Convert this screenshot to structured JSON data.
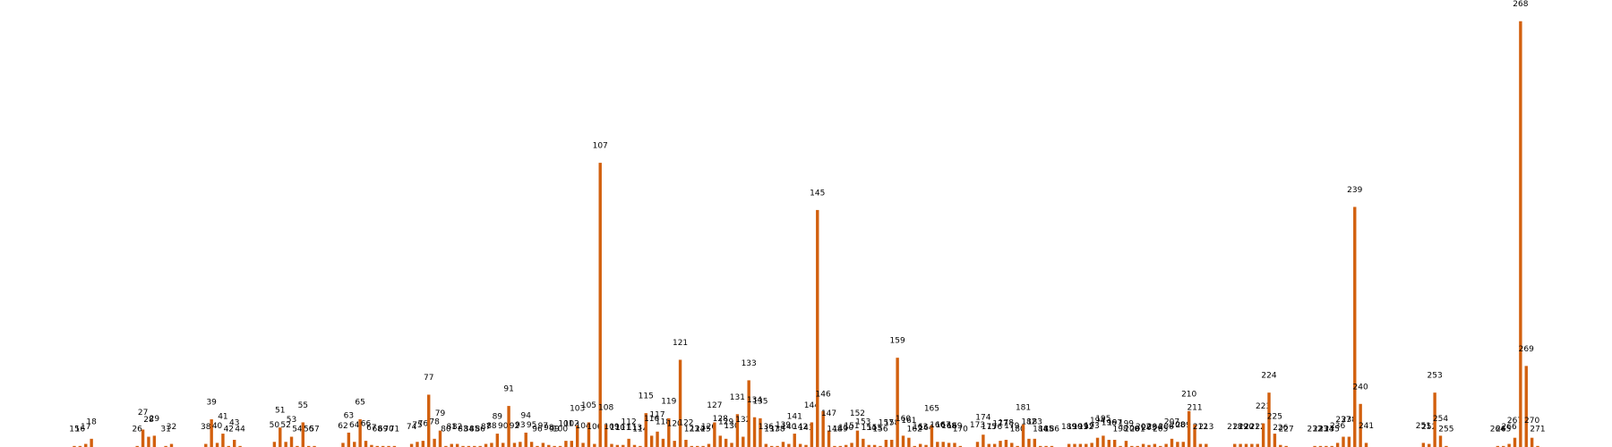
{
  "chart_data": {
    "type": "bar",
    "color": "#d2600e",
    "x": [
      15,
      16,
      17,
      18,
      26,
      27,
      28,
      29,
      31,
      32,
      38,
      39,
      40,
      41,
      42,
      43,
      44,
      50,
      51,
      52,
      53,
      54,
      55,
      56,
      57,
      62,
      63,
      64,
      65,
      66,
      67,
      68,
      69,
      70,
      71,
      74,
      75,
      76,
      77,
      78,
      79,
      80,
      81,
      82,
      83,
      84,
      85,
      86,
      87,
      88,
      89,
      90,
      91,
      92,
      93,
      94,
      95,
      96,
      97,
      98,
      99,
      100,
      101,
      102,
      103,
      104,
      105,
      106,
      107,
      108,
      109,
      110,
      111,
      112,
      113,
      114,
      115,
      116,
      117,
      118,
      119,
      120,
      121,
      122,
      123,
      124,
      125,
      126,
      127,
      128,
      129,
      130,
      131,
      132,
      133,
      134,
      135,
      136,
      137,
      138,
      139,
      140,
      141,
      142,
      143,
      144,
      145,
      146,
      147,
      148,
      149,
      150,
      151,
      152,
      153,
      154,
      155,
      156,
      157,
      158,
      159,
      160,
      161,
      162,
      163,
      164,
      165,
      166,
      167,
      168,
      169,
      170,
      173,
      174,
      175,
      176,
      177,
      178,
      179,
      180,
      181,
      182,
      183,
      184,
      185,
      186,
      189,
      190,
      191,
      192,
      193,
      194,
      195,
      196,
      197,
      198,
      199,
      200,
      201,
      202,
      203,
      204,
      205,
      206,
      207,
      208,
      209,
      210,
      211,
      212,
      213,
      218,
      219,
      220,
      221,
      222,
      223,
      224,
      225,
      226,
      227,
      232,
      233,
      234,
      235,
      236,
      237,
      238,
      239,
      240,
      241,
      251,
      252,
      253,
      254,
      255,
      264,
      265,
      266,
      267,
      268,
      269,
      270,
      271
    ],
    "values": [
      1,
      1,
      3,
      8,
      1,
      17,
      10,
      11,
      1,
      3,
      3,
      27,
      4,
      13,
      1,
      7,
      1,
      5,
      19,
      5,
      10,
      1,
      24,
      1,
      1,
      4,
      14,
      5,
      27,
      6,
      2,
      1,
      1,
      1,
      1,
      3,
      5,
      6,
      51,
      8,
      16,
      1,
      3,
      3,
      1,
      1,
      1,
      1,
      3,
      4,
      13,
      4,
      40,
      4,
      5,
      14,
      5,
      1,
      4,
      2,
      1,
      1,
      6,
      6,
      21,
      4,
      24,
      3,
      277,
      22,
      3,
      2,
      2,
      8,
      2,
      1,
      33,
      11,
      15,
      8,
      28,
      6,
      85,
      7,
      1,
      1,
      1,
      3,
      24,
      11,
      8,
      4,
      32,
      10,
      65,
      29,
      28,
      3,
      1,
      1,
      5,
      3,
      13,
      3,
      2,
      24,
      231,
      35,
      16,
      1,
      1,
      2,
      4,
      16,
      8,
      2,
      2,
      1,
      7,
      7,
      87,
      11,
      9,
      1,
      3,
      2,
      21,
      5,
      5,
      4,
      4,
      1,
      5,
      12,
      3,
      3,
      6,
      7,
      4,
      1,
      22,
      8,
      8,
      1,
      1,
      1,
      3,
      3,
      3,
      3,
      4,
      9,
      11,
      7,
      7,
      1,
      6,
      1,
      1,
      3,
      2,
      3,
      1,
      3,
      8,
      5,
      5,
      35,
      22,
      3,
      3,
      3,
      3,
      3,
      3,
      3,
      23,
      53,
      13,
      2,
      1,
      1,
      1,
      1,
      1,
      4,
      10,
      10,
      234,
      42,
      4,
      4,
      3,
      53,
      11,
      1,
      1,
      1,
      3,
      9,
      415,
      79,
      9,
      1
    ],
    "xlim": [
      2,
      284
    ],
    "ylim": [
      0,
      420
    ]
  }
}
